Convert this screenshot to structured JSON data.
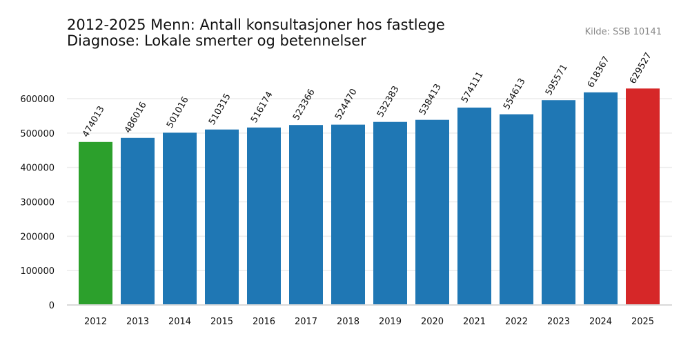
{
  "chart_data": {
    "type": "bar",
    "title_line1": "2012-2025 Menn: Antall konsultasjoner hos fastlege",
    "title_line2": "Diagnose: Lokale smerter og betennelser",
    "source": "Kilde: SSB 10141",
    "xlabel": "",
    "ylabel": "",
    "categories": [
      "2012",
      "2013",
      "2014",
      "2015",
      "2016",
      "2017",
      "2018",
      "2019",
      "2020",
      "2021",
      "2022",
      "2023",
      "2024",
      "2025"
    ],
    "values": [
      474013,
      486016,
      501016,
      510315,
      516174,
      523366,
      524470,
      532383,
      538413,
      574111,
      554613,
      595571,
      618367,
      629527
    ],
    "colors": [
      "#2ca02c",
      "#1f77b4",
      "#1f77b4",
      "#1f77b4",
      "#1f77b4",
      "#1f77b4",
      "#1f77b4",
      "#1f77b4",
      "#1f77b4",
      "#1f77b4",
      "#1f77b4",
      "#1f77b4",
      "#1f77b4",
      "#d62728"
    ],
    "ylim": [
      0,
      700000
    ],
    "yticks": [
      0,
      100000,
      200000,
      300000,
      400000,
      500000,
      600000
    ],
    "grid": true,
    "legend": "none"
  }
}
